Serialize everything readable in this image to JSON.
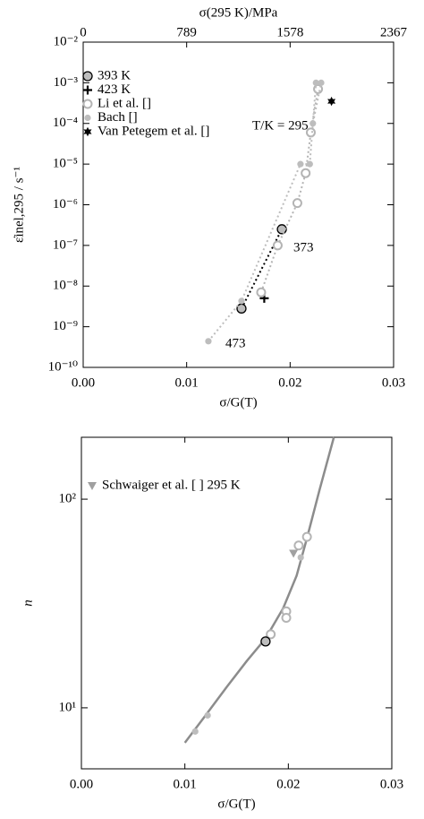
{
  "chart_data": [
    {
      "type": "scatter",
      "xlabel": "σ/G(T)",
      "ylabel": "ε̇inel,295 / s⁻¹",
      "x2label": "σ(295 K)/MPa",
      "xlim": [
        0,
        0.03
      ],
      "xticks": [
        {
          "value": 0,
          "label": "0.00"
        },
        0.01,
        0.02,
        0.03
      ],
      "x2lim": [
        0,
        2367
      ],
      "x2ticks": [
        0,
        789,
        1578,
        2367
      ],
      "ylim": [
        1e-10,
        0.01
      ],
      "yscale": "log",
      "yticks": [
        {
          "value": 1e-10,
          "label": "10⁻¹⁰"
        },
        {
          "value": 1e-09,
          "label": "10⁻⁹"
        },
        {
          "value": 1e-08,
          "label": "10⁻⁸"
        },
        {
          "value": 1e-07,
          "label": "10⁻⁷"
        },
        {
          "value": 1e-06,
          "label": "10⁻⁶"
        },
        {
          "value": 1e-05,
          "label": "10⁻⁵"
        },
        {
          "value": 0.0001,
          "label": "10⁻⁴"
        },
        {
          "value": 0.001,
          "label": "10⁻³"
        },
        {
          "value": 0.01,
          "label": "10⁻²"
        }
      ],
      "legend": "upper left",
      "annotations": [
        "T/K = 295",
        "373",
        "473"
      ],
      "series": [
        {
          "name": "393 K",
          "marker": "circle",
          "color": "#bdbdbd",
          "edge": "#000000",
          "line": "dotted",
          "x": [
            0.0153,
            0.0192
          ],
          "values": [
            2.8e-09,
            2.5e-07
          ]
        },
        {
          "name": "423 K",
          "marker": "plus",
          "color": "#000000",
          "edge": "#000000",
          "x": [
            0.0175
          ],
          "values": [
            5e-09
          ]
        },
        {
          "name": "Li et al. []",
          "marker": "open-circle",
          "color": "#b4b4b4",
          "edge": "#b4b4b4",
          "line": "dotted",
          "x": [
            0.0172,
            0.0188,
            0.0207,
            0.0215,
            0.022,
            0.0227
          ],
          "values": [
            7e-09,
            1e-07,
            1.1e-06,
            6e-06,
            6e-05,
            0.0007
          ]
        },
        {
          "name": "Bach []",
          "marker": "dot",
          "color": "#bdbdbd",
          "edge": "#bdbdbd",
          "line": "dotted",
          "x": [
            0.0121,
            0.0153,
            0.021,
            0.0219,
            0.0225,
            0.023,
            0.0222
          ],
          "values": [
            4.4e-10,
            4.3e-09,
            1e-05,
            1e-05,
            0.001,
            0.001,
            0.0001
          ]
        },
        {
          "name": "Van Petegem et al. []",
          "marker": "hexagram",
          "color": "#000000",
          "edge": "#000000",
          "x": [
            0.024
          ],
          "values": [
            0.00035
          ]
        }
      ]
    },
    {
      "type": "scatter",
      "xlabel": "σ/G(T)",
      "ylabel": "n",
      "xlim": [
        0,
        0.03
      ],
      "xticks": [
        {
          "value": 0,
          "label": "0.00"
        },
        0.01,
        0.02,
        0.03
      ],
      "ylim": [
        5.1,
        198
      ],
      "yscale": "log",
      "yticks": [
        {
          "value": 10,
          "label": "10¹"
        },
        {
          "value": 100,
          "label": "10²"
        }
      ],
      "legend": "upper left",
      "series": [
        {
          "marker": "none",
          "color": "#8c8c8c",
          "edge": "#8c8c8c",
          "line": "solid",
          "x": [
            0.01,
            0.012,
            0.014,
            0.016,
            0.0178,
            0.0195,
            0.0208,
            0.0218,
            0.023,
            0.0244
          ],
          "values": [
            6.8,
            9.2,
            12.5,
            16.8,
            21.5,
            30,
            43,
            65,
            110,
            198
          ]
        },
        {
          "marker": "open-circle",
          "color": "#b4b4b4",
          "edge": "#b4b4b4",
          "x": [
            0.0183,
            0.0198,
            0.0198,
            0.021,
            0.0218
          ],
          "values": [
            22.5,
            29,
            27,
            60,
            66
          ]
        },
        {
          "marker": "dot",
          "color": "#bdbdbd",
          "edge": "#bdbdbd",
          "x": [
            0.011,
            0.0122,
            0.0212
          ],
          "values": [
            7.7,
            9.2,
            52.6
          ]
        },
        {
          "marker": "circle",
          "color": "#bdbdbd",
          "edge": "#000000",
          "x": [
            0.0178
          ],
          "values": [
            20.8
          ]
        },
        {
          "name": "Schwaiger et al. [ ] 295 K",
          "marker": "triangle-down",
          "color": "#a0a0a0",
          "edge": "#a0a0a0",
          "x": [
            0.0205
          ],
          "values": [
            55
          ]
        }
      ]
    }
  ]
}
